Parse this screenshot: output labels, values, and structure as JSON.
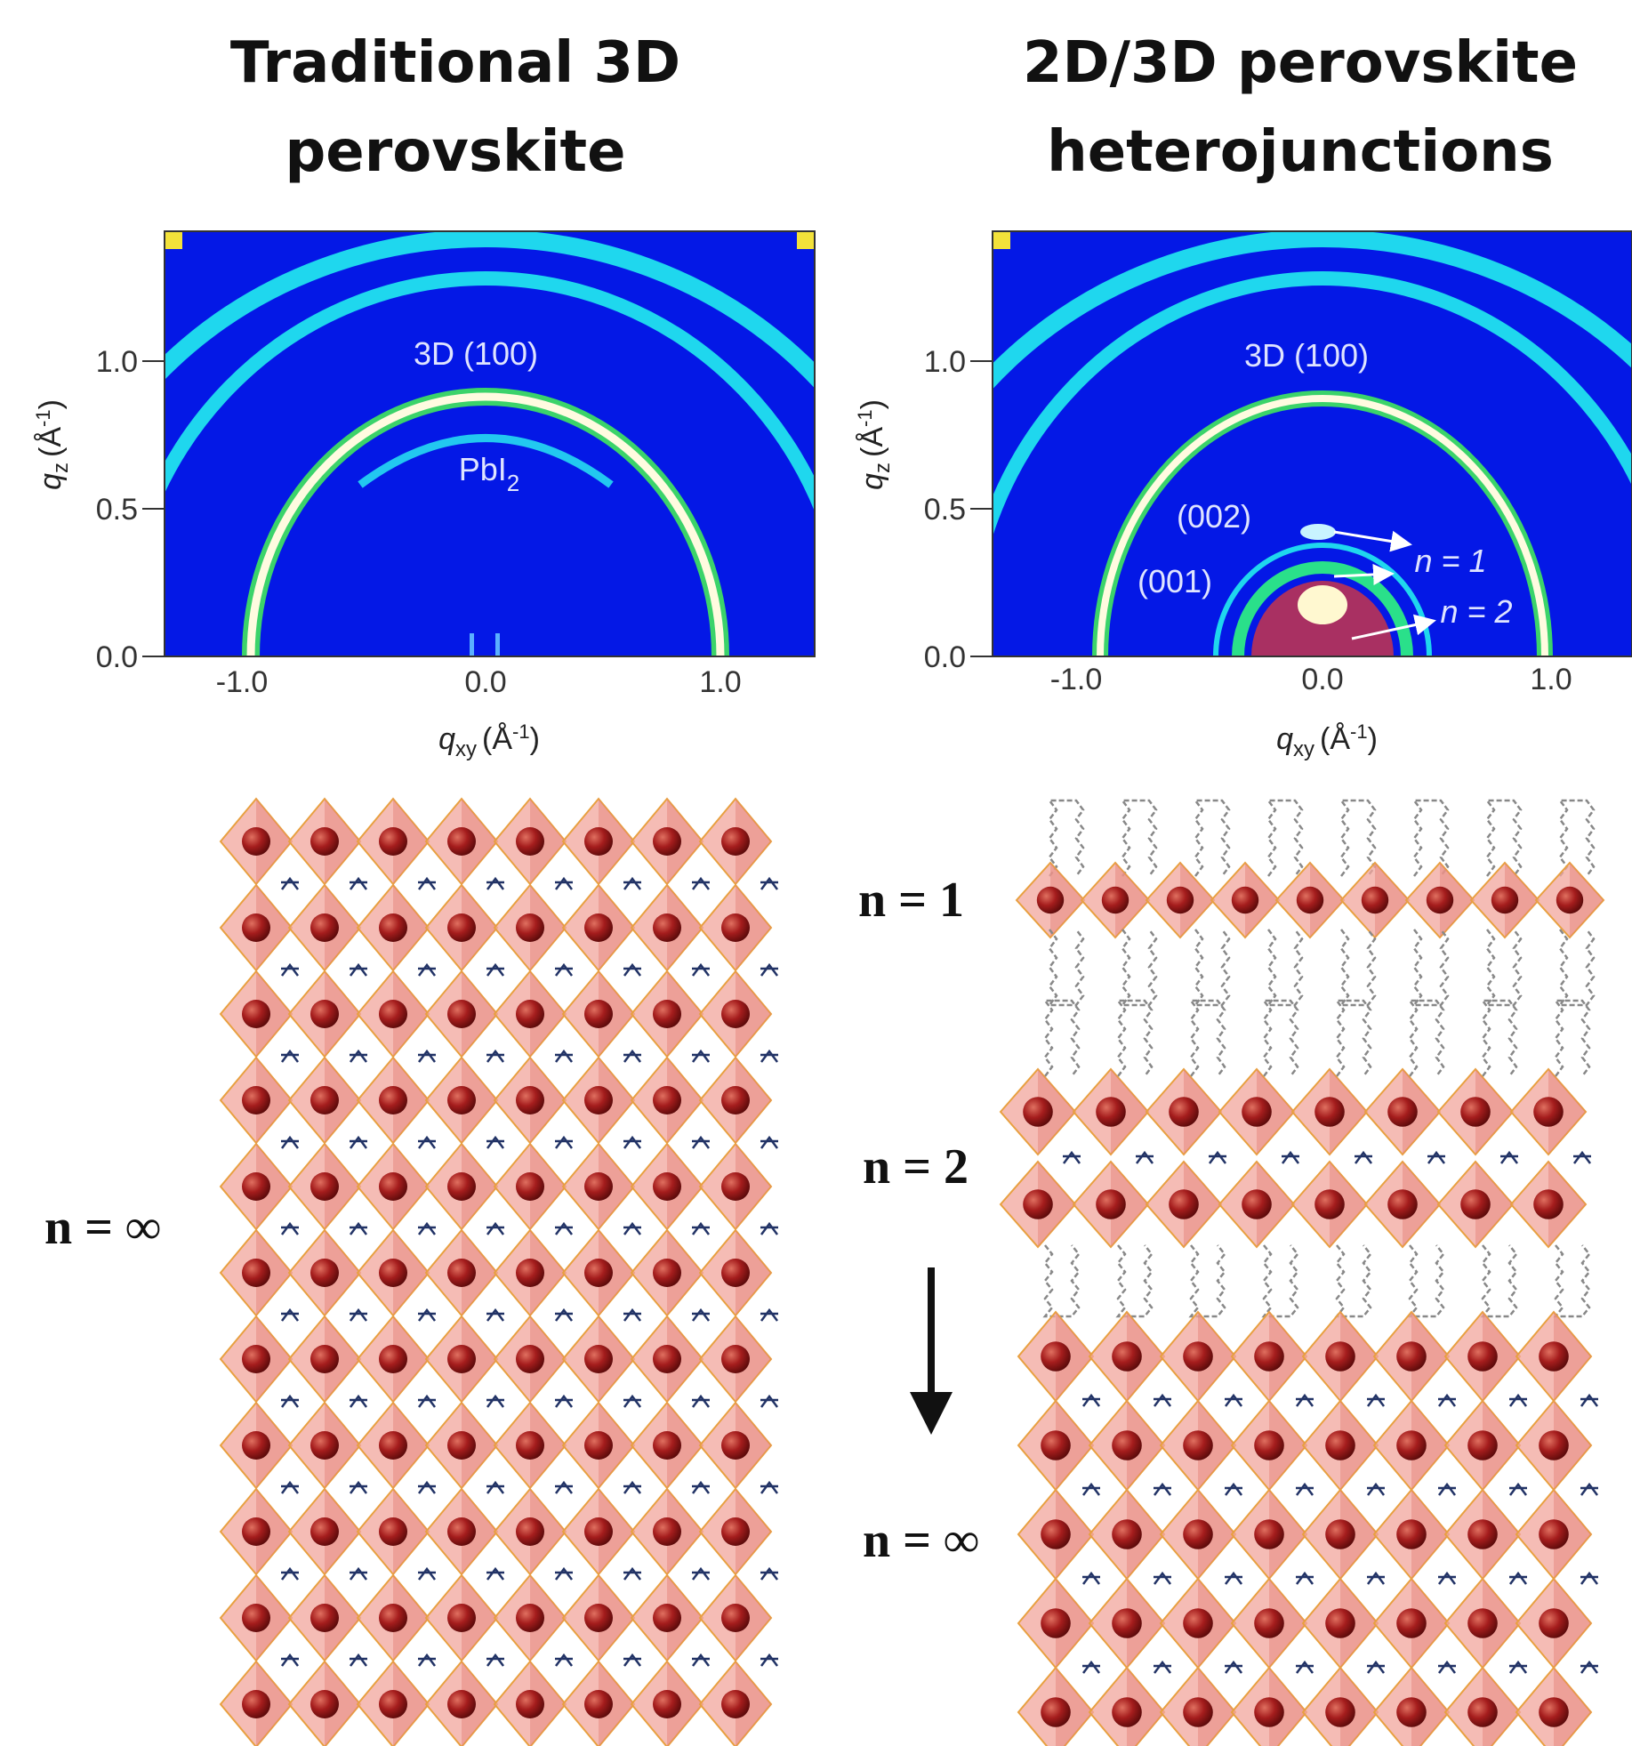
{
  "panels": [
    {
      "title": [
        "Traditional 3D",
        "perovskite"
      ],
      "plot": {
        "yticks": [
          "1.0",
          "0.5",
          "0.0"
        ],
        "xticks": [
          "-1.0",
          "0.0",
          "1.0"
        ],
        "xlabel": {
          "symbol": "q",
          "sub": "xy",
          "unit": "(Å",
          "sup": "-1",
          "close": ")"
        },
        "ylabel": {
          "symbol": "q",
          "sub": "z",
          "unit": "(Å",
          "sup": "-1",
          "close": ")"
        },
        "annotations": [
          {
            "text": "3D (100)"
          },
          {
            "text": "PbI",
            "sub": "2"
          }
        ]
      },
      "structure_labels": [
        "n = ∞"
      ]
    },
    {
      "title": [
        "2D/3D perovskite",
        "heterojunctions"
      ],
      "plot": {
        "yticks": [
          "1.0",
          "0.5",
          "0.0"
        ],
        "xticks": [
          "-1.0",
          "0.0",
          "1.0"
        ],
        "xlabel": {
          "symbol": "q",
          "sub": "xy",
          "unit": "(Å",
          "sup": "-1",
          "close": ")"
        },
        "ylabel": {
          "symbol": "q",
          "sub": "z",
          "unit": "(Å",
          "sup": "-1",
          "close": ")"
        },
        "annotations": [
          {
            "text": "3D (100)"
          },
          {
            "text": "(002)"
          },
          {
            "text": "(001)"
          },
          {
            "text": "n = 1"
          },
          {
            "text": "n = 2"
          }
        ]
      },
      "structure_labels": [
        "n = 1",
        "n = 2",
        "n = ∞"
      ]
    }
  ]
}
